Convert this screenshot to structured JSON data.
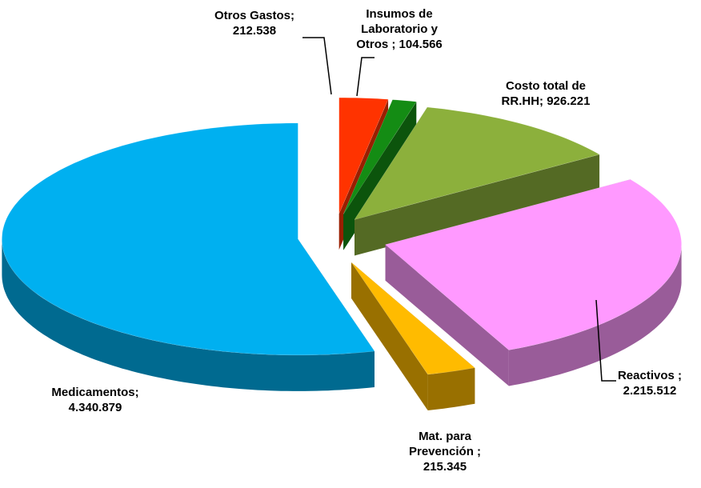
{
  "chart_data": {
    "type": "pie3d",
    "categories": [
      "Otros Gastos;",
      "Insumos de Laboratorio y Otros ;",
      "Costo total de RR.HH;",
      "Reactivos ;",
      "Mat. para Prevención ;",
      "Medicamentos;"
    ],
    "values": [
      212538,
      104566,
      926221,
      2215512,
      215345,
      4340879
    ],
    "value_labels": [
      "212.538",
      "104.566",
      "926.221",
      "2.215.512",
      "215.345",
      "4.340.879"
    ],
    "colors": [
      "#ff3300",
      "#148c14",
      "#8cb03c",
      "#ff99ff",
      "#ffbb00",
      "#00b0f0"
    ]
  }
}
